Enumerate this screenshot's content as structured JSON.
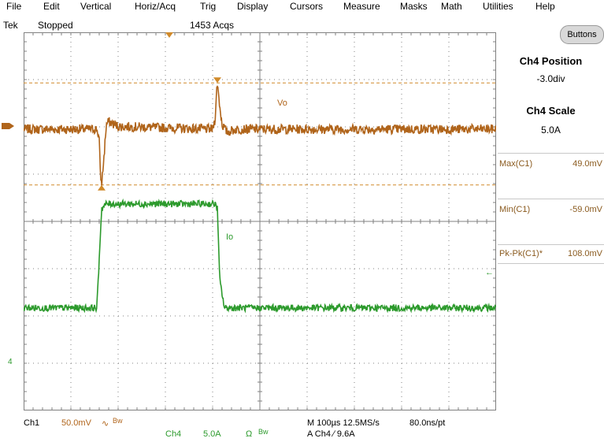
{
  "menu": [
    "File",
    "Edit",
    "Vertical",
    "Horiz/Acq",
    "Trig",
    "Display",
    "Cursors",
    "Measure",
    "Masks",
    "Math",
    "Utilities",
    "Help"
  ],
  "status": {
    "brand": "Tek",
    "state": "Stopped",
    "acqs": "1453 Acqs"
  },
  "right_panel": {
    "buttons_label": "Buttons",
    "position_title": "Ch4 Position",
    "position_value": "-3.0div",
    "scale_title": "Ch4 Scale",
    "scale_value": "5.0A",
    "measurements": [
      {
        "label": "Max(C1)",
        "value": "49.0mV"
      },
      {
        "label": "Min(C1)",
        "value": "-59.0mV"
      },
      {
        "label": "Pk-Pk(C1)*",
        "value": "108.0mV"
      }
    ]
  },
  "bottom": {
    "ch1_label": "Ch1",
    "ch1_scale": "50.0mV",
    "ch1_coupling": "∿",
    "ch1_bw": "Bw",
    "ch4_label": "Ch4",
    "ch4_scale": "5.0A",
    "ch4_coupling": "Ω",
    "ch4_bw": "Bw",
    "timebase": "M 100µs 12.5MS/s",
    "resolution": "80.0ns/pt",
    "trigger": "A  Ch4  ∕  9.6A"
  },
  "waveform_labels": {
    "vo": "Vo",
    "io": "Io",
    "ch4_ground": "4"
  },
  "colors": {
    "ch1": "#b0641a",
    "ch4": "#2c9a2c",
    "grid": "#808080",
    "cursor": "#d08a2a"
  },
  "chart_data": {
    "type": "line",
    "x_unit": "div",
    "xlim": [
      0,
      10
    ],
    "series": [
      {
        "name": "Vo",
        "channel": "Ch1",
        "unit": "mV",
        "x": [
          0,
          1.55,
          1.6,
          1.62,
          1.65,
          1.7,
          1.75,
          1.8,
          2.0,
          4.0,
          4.05,
          4.08,
          4.1,
          4.15,
          4.2,
          4.3,
          4.5,
          10
        ],
        "y": [
          0,
          0,
          -10,
          -45,
          -59,
          -30,
          5,
          8,
          3,
          0,
          10,
          35,
          49,
          25,
          5,
          -3,
          0,
          0
        ]
      },
      {
        "name": "Io",
        "channel": "Ch4",
        "unit": "A",
        "x": [
          0,
          1.55,
          1.58,
          1.65,
          1.75,
          4.05,
          4.1,
          4.15,
          4.25,
          10
        ],
        "y": [
          0,
          0,
          3,
          10.5,
          11,
          11,
          10.5,
          3,
          0,
          0
        ]
      }
    ],
    "cursors_mV": [
      49.0,
      -59.0
    ]
  }
}
